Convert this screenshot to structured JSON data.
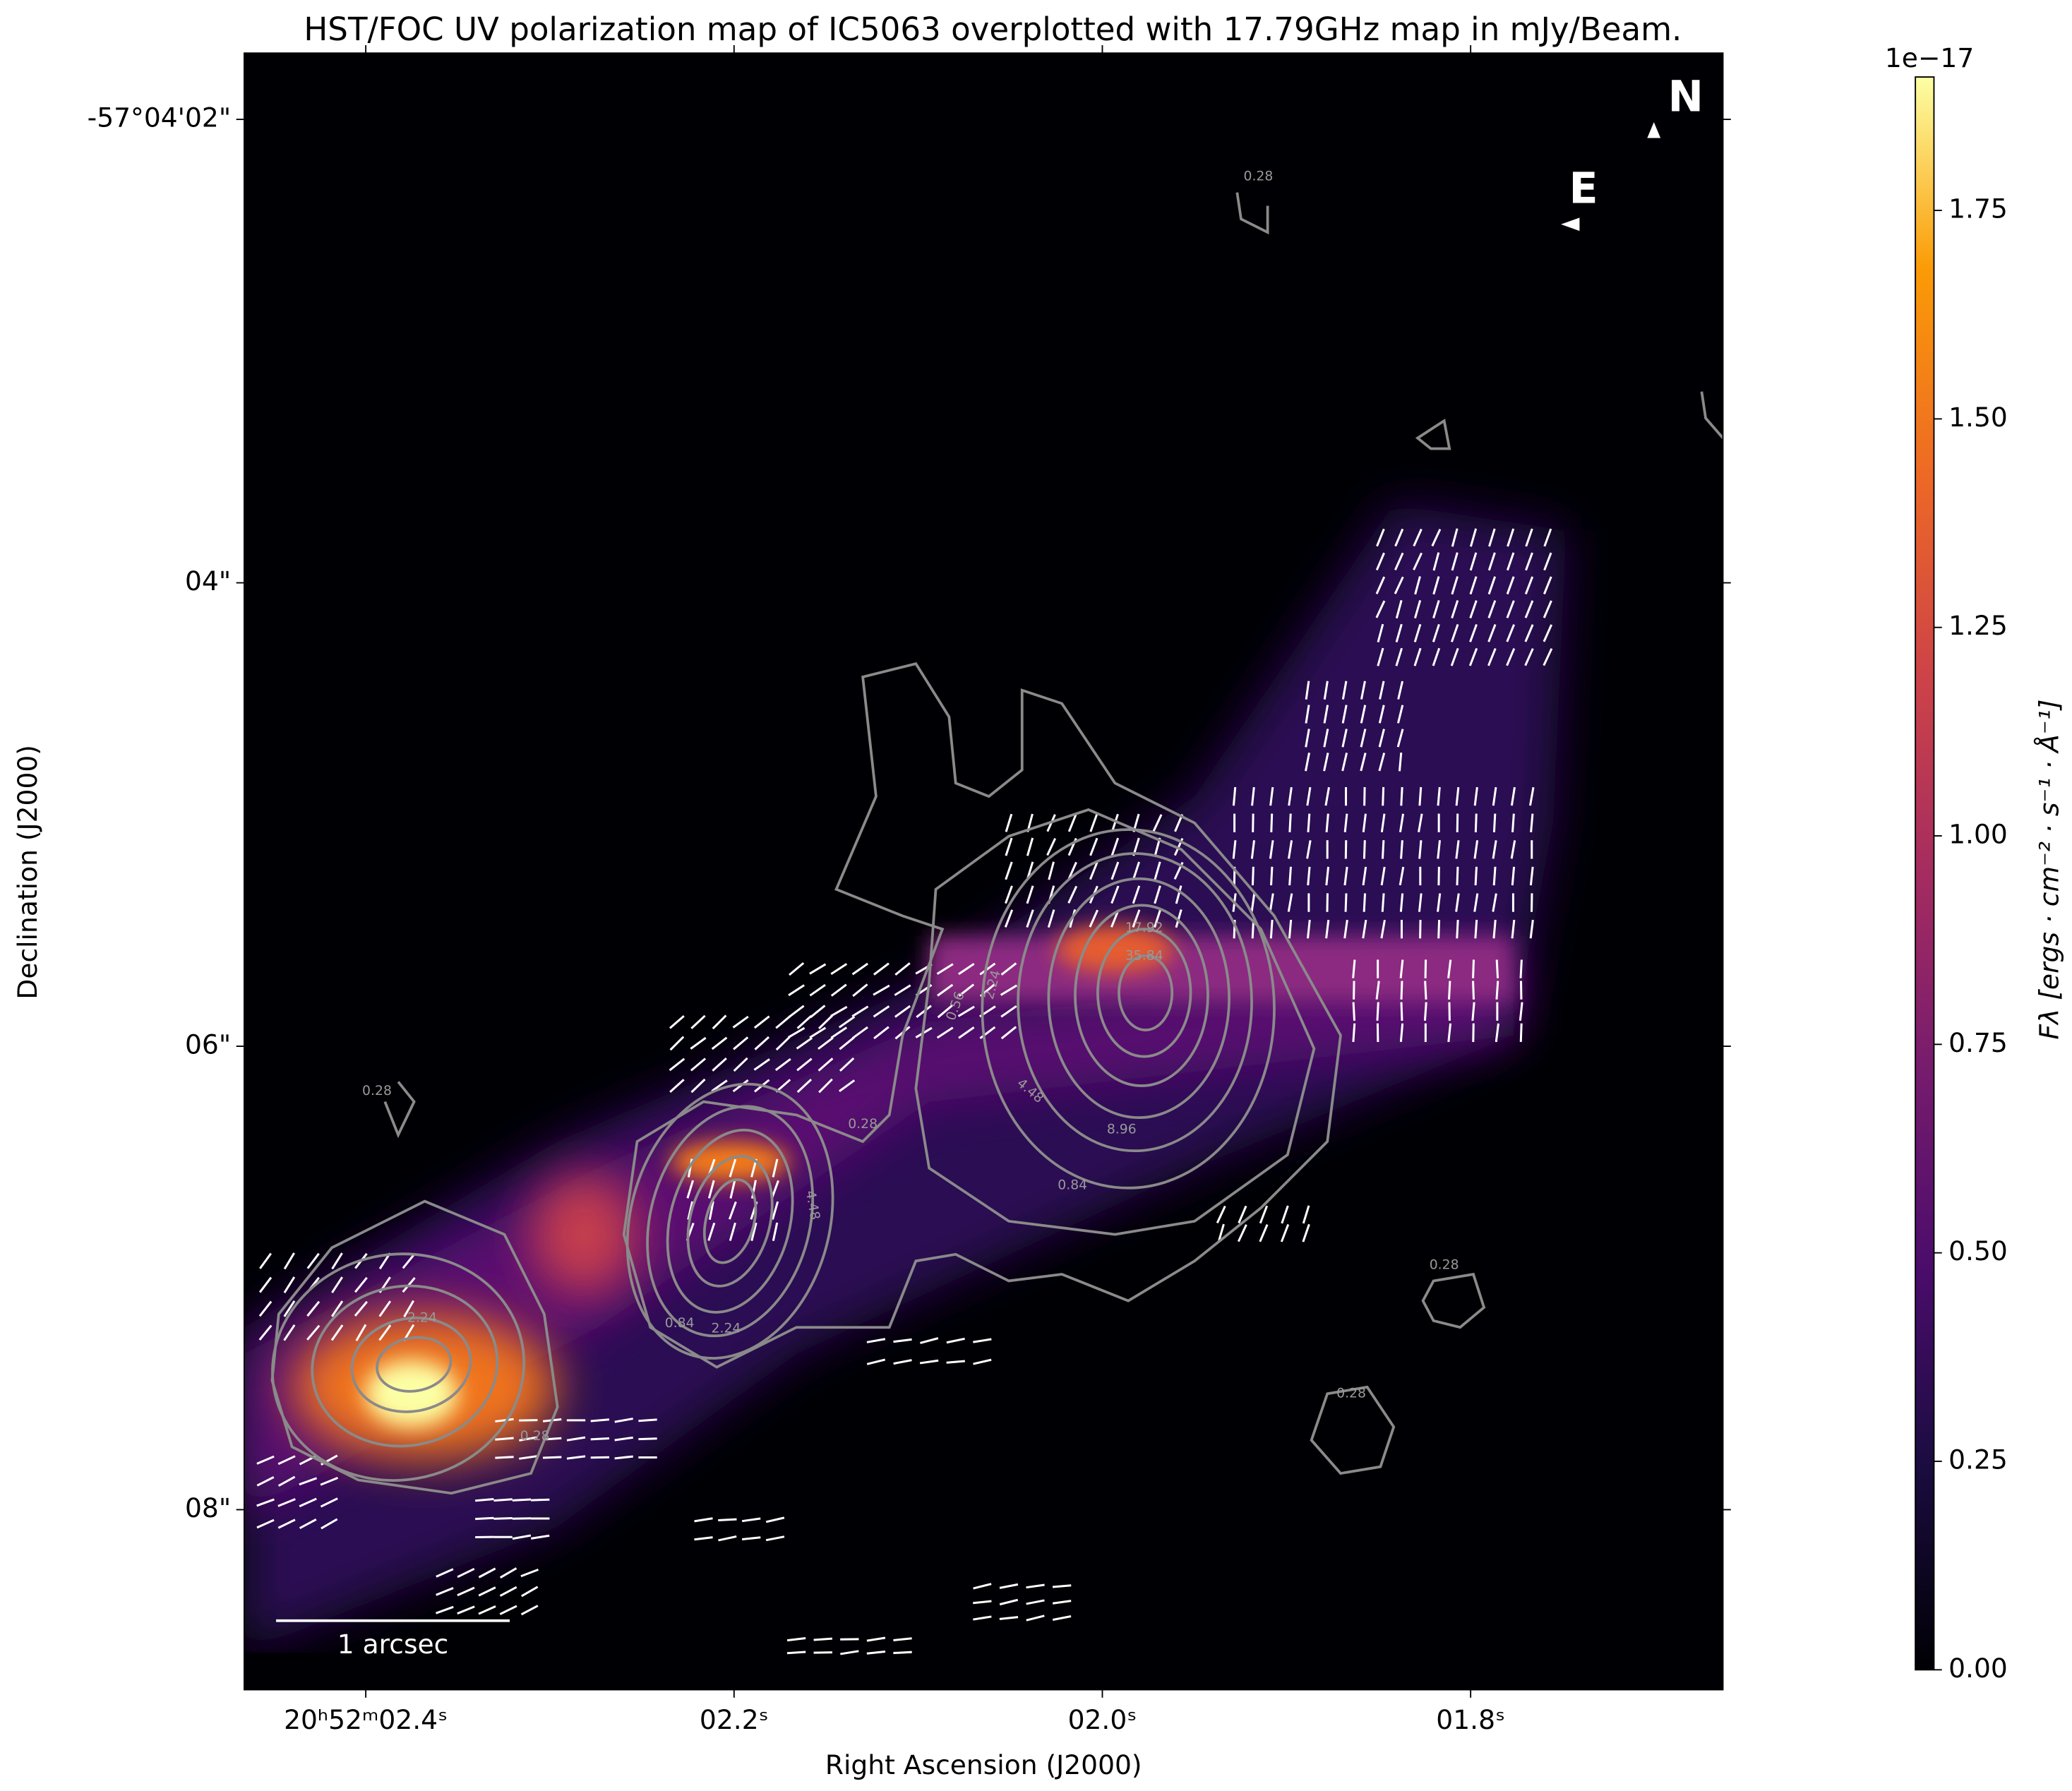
{
  "chart_data": {
    "type": "image",
    "title": "HST/FOC UV polarization map of IC5063 overplotted with 17.79GHz map in mJy/Beam.",
    "xlabel": "Right Ascension (J2000)",
    "ylabel": "Declination (J2000)",
    "xlim": [
      2.466,
      1.663
    ],
    "xticks": [
      {
        "value": 2.4,
        "label": "20ʰ52ᵐ02.4ˢ"
      },
      {
        "value": 2.2,
        "label": "02.2ˢ"
      },
      {
        "value": 2.0,
        "label": "02.0ˢ"
      },
      {
        "value": 1.8,
        "label": "01.8ˢ"
      }
    ],
    "ylim": [
      8.777,
      1.714
    ],
    "yticks": [
      {
        "value": 2,
        "label": "-57°04'02\""
      },
      {
        "value": 4,
        "label": "04\""
      },
      {
        "value": 6,
        "label": "06\""
      },
      {
        "value": 8,
        "label": "08\""
      }
    ],
    "colorbar": {
      "label": "Fλ [ergs · cm⁻² · s⁻¹ · Å⁻¹]",
      "offset_text": "1e−17",
      "zlim": [
        0,
        1.91
      ],
      "ticks": [
        {
          "value": 0,
          "label": "0.00"
        },
        {
          "value": 0.25,
          "label": "0.25"
        },
        {
          "value": 0.5,
          "label": "0.50"
        },
        {
          "value": 0.75,
          "label": "0.75"
        },
        {
          "value": 1,
          "label": "1.00"
        },
        {
          "value": 1.25,
          "label": "1.25"
        },
        {
          "value": 1.5,
          "label": "1.50"
        },
        {
          "value": 1.75,
          "label": "1.75"
        }
      ],
      "colormap": "inferno"
    },
    "contour_levels": [
      0.28,
      0.56,
      0.84,
      2.24,
      4.48,
      8.96,
      17.92,
      35.84
    ],
    "annotations": {
      "north": "N",
      "east": "E",
      "scale_bar": "1 arcsec"
    }
  }
}
